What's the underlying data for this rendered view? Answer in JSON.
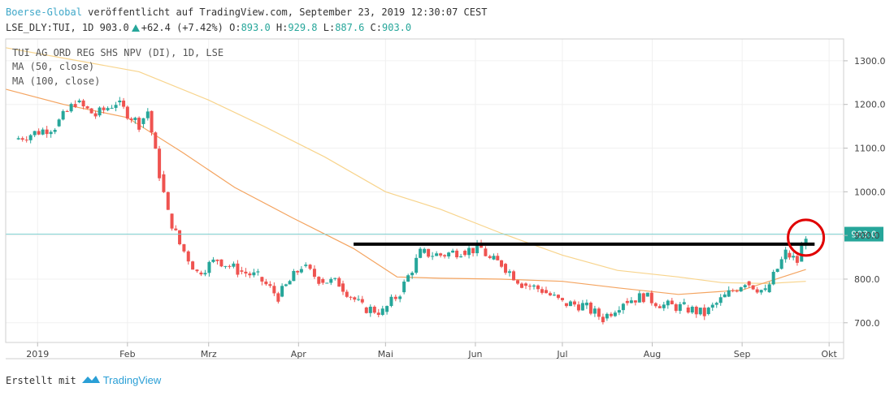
{
  "header": {
    "source": "Boerse-Global",
    "published_text": " veröffentlicht auf TradingView.com, September 23, 2019 12:30:07 CEST",
    "symbol": "LSE_DLY:TUI, 1D 903.0",
    "change": "+62.4 (+7.42%)",
    "open_label": "O:",
    "open": "893.0",
    "high_label": "H:",
    "high": "929.8",
    "low_label": "L:",
    "low": "887.6",
    "close_label": "C:",
    "close": "903.0"
  },
  "legend": {
    "series_label": "TUI AG ORD REG SHS NPV (DI), 1D, LSE",
    "ma50_label": "MA (50, close)",
    "ma100_label": "MA (100, close)"
  },
  "footer": {
    "created_with": "Erstellt mit",
    "brand": "TradingView"
  },
  "colors": {
    "up": "#26a69a",
    "down": "#ef5350",
    "ma50": "#f4a460",
    "ma100": "#f8d48c",
    "last_price_line": "#7fd0d0",
    "resistance": "#000000",
    "highlight_circle": "#e00000"
  },
  "chart_data": {
    "type": "candlestick",
    "title": "TUI AG ORD REG SHS NPV (DI), 1D, LSE",
    "ylim": [
      655,
      1350
    ],
    "y_ticks": [
      700,
      800,
      900,
      1000,
      1100,
      1200,
      1300
    ],
    "y_tick_labels": [
      "700.0",
      "800.0",
      "900.0",
      "1000.0",
      "1100.0",
      "1200.0",
      "1300.0"
    ],
    "x_tick_labels": [
      "2019",
      "Feb",
      "Mrz",
      "Apr",
      "Mai",
      "Jun",
      "Jul",
      "Aug",
      "Sep",
      "Okt"
    ],
    "x_tick_dates": [
      "2019-01-01",
      "2019-02-01",
      "2019-03-01",
      "2019-04-01",
      "2019-05-01",
      "2019-06-01",
      "2019-07-01",
      "2019-08-01",
      "2019-09-01",
      "2019-10-01"
    ],
    "x_range": [
      "2018-12-21",
      "2019-10-06"
    ],
    "last_price": 903.0,
    "last_price_label": "903.0",
    "resistance_level": 880,
    "resistance_range": [
      "2019-04-20",
      "2019-09-26"
    ],
    "highlight": {
      "date": "2019-09-23",
      "price": 895
    },
    "grid": true,
    "series": [
      {
        "name": "TUI AG ORD REG SHS NPV (DI), 1D, LSE",
        "points": [
          [
            "2018-12-24",
            1120
          ],
          [
            "2019-01-07",
            1150
          ],
          [
            "2019-01-14",
            1205
          ],
          [
            "2019-01-21",
            1175
          ],
          [
            "2019-01-28",
            1205
          ],
          [
            "2019-02-05",
            1155
          ],
          [
            "2019-02-08",
            1185
          ],
          [
            "2019-02-12",
            1040
          ],
          [
            "2019-02-15",
            950
          ],
          [
            "2019-02-19",
            880
          ],
          [
            "2019-02-25",
            815
          ],
          [
            "2019-03-04",
            845
          ],
          [
            "2019-03-11",
            820
          ],
          [
            "2019-03-18",
            805
          ],
          [
            "2019-03-25",
            760
          ],
          [
            "2019-04-02",
            830
          ],
          [
            "2019-04-08",
            800
          ],
          [
            "2019-04-15",
            790
          ],
          [
            "2019-04-23",
            735
          ],
          [
            "2019-04-30",
            725
          ],
          [
            "2019-05-06",
            770
          ],
          [
            "2019-05-13",
            860
          ],
          [
            "2019-05-20",
            855
          ],
          [
            "2019-05-27",
            865
          ],
          [
            "2019-06-03",
            870
          ],
          [
            "2019-06-06",
            845
          ],
          [
            "2019-06-10",
            835
          ],
          [
            "2019-06-17",
            790
          ],
          [
            "2019-06-24",
            775
          ],
          [
            "2019-07-01",
            745
          ],
          [
            "2019-07-08",
            740
          ],
          [
            "2019-07-15",
            710
          ],
          [
            "2019-07-22",
            750
          ],
          [
            "2019-07-29",
            760
          ],
          [
            "2019-08-05",
            740
          ],
          [
            "2019-08-12",
            735
          ],
          [
            "2019-08-19",
            720
          ],
          [
            "2019-08-26",
            760
          ],
          [
            "2019-09-02",
            795
          ],
          [
            "2019-09-09",
            770
          ],
          [
            "2019-09-16",
            860
          ],
          [
            "2019-09-20",
            840
          ],
          [
            "2019-09-23",
            903
          ]
        ]
      },
      {
        "name": "MA (50, close)",
        "points": [
          [
            "2018-12-21",
            1235
          ],
          [
            "2019-01-10",
            1200
          ],
          [
            "2019-02-01",
            1170
          ],
          [
            "2019-02-20",
            1090
          ],
          [
            "2019-03-10",
            1010
          ],
          [
            "2019-03-30",
            940
          ],
          [
            "2019-04-20",
            870
          ],
          [
            "2019-05-05",
            805
          ],
          [
            "2019-05-20",
            802
          ],
          [
            "2019-06-10",
            800
          ],
          [
            "2019-07-01",
            795
          ],
          [
            "2019-07-20",
            780
          ],
          [
            "2019-08-10",
            765
          ],
          [
            "2019-09-01",
            775
          ],
          [
            "2019-09-23",
            822
          ]
        ]
      },
      {
        "name": "MA (100, close)",
        "points": [
          [
            "2018-12-21",
            1330
          ],
          [
            "2019-01-15",
            1300
          ],
          [
            "2019-02-05",
            1275
          ],
          [
            "2019-03-01",
            1210
          ],
          [
            "2019-03-20",
            1150
          ],
          [
            "2019-04-10",
            1080
          ],
          [
            "2019-05-01",
            1000
          ],
          [
            "2019-05-20",
            960
          ],
          [
            "2019-06-10",
            905
          ],
          [
            "2019-07-01",
            855
          ],
          [
            "2019-07-20",
            820
          ],
          [
            "2019-08-10",
            805
          ],
          [
            "2019-08-25",
            792
          ],
          [
            "2019-09-10",
            790
          ],
          [
            "2019-09-23",
            795
          ]
        ]
      }
    ]
  }
}
